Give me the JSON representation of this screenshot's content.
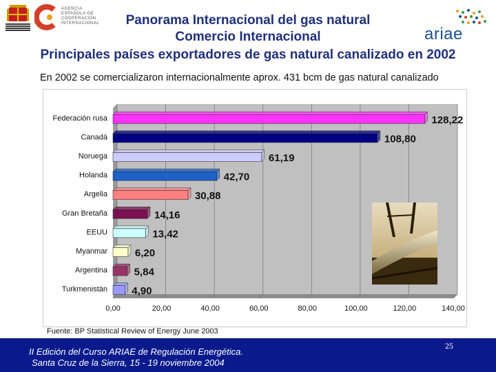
{
  "header": {
    "agency_lines": [
      "AGENCIA",
      "ESPAÑOLA DE",
      "COOPERACIÓN",
      "INTERNACIONAL"
    ],
    "ministry_text": "MINISTERIO DE ASUNTOS EXTERIORES",
    "brand_right": "ariae",
    "title_line1": "Panorama Internacional del gas natural",
    "title_line2": "Comercio Internacional",
    "title_line3": "Principales países exportadores de gas natural canalizado en 2002",
    "subtitle": "En 2002 se comercializaron internacionalmente aprox. 431 bcm de gas natural canalizado"
  },
  "chart_data": {
    "type": "bar",
    "orientation": "horizontal",
    "categories": [
      "Federación rusa",
      "Canadá",
      "Noruega",
      "Holanda",
      "Argelia",
      "Gran Bretaña",
      "EEUU",
      "Myanmar",
      "Argentina",
      "Turkmenistán"
    ],
    "values": [
      128.22,
      108.8,
      61.19,
      42.7,
      30.88,
      14.16,
      13.42,
      6.2,
      5.84,
      4.9
    ],
    "value_labels": [
      "128,22",
      "108,80",
      "61,19",
      "42,70",
      "30,88",
      "14,16",
      "13,42",
      "6,20",
      "5,84",
      "4,90"
    ],
    "bar_colors": [
      "#ff33ff",
      "#000080",
      "#ccccff",
      "#1c60c8",
      "#ff8080",
      "#7a1050",
      "#ccffff",
      "#ffffcc",
      "#993366",
      "#9999ff"
    ],
    "x_ticks": [
      "0,00",
      "20,00",
      "40,00",
      "60,00",
      "80,00",
      "100,00",
      "120,00",
      "140,00"
    ],
    "xlim": [
      0,
      140
    ],
    "grid": true,
    "plot_background": "#c0c0c0",
    "legend": false
  },
  "source": "Fuente: BP Statistical Review of Energy June 2003",
  "footer": {
    "line1": "II Edición del Curso ARIAE de Regulación Energética.",
    "line2": "Santa Cruz de la Sierra, 15 - 19 noviembre 2004",
    "page_number": "25",
    "background": "#0a1a8c"
  }
}
